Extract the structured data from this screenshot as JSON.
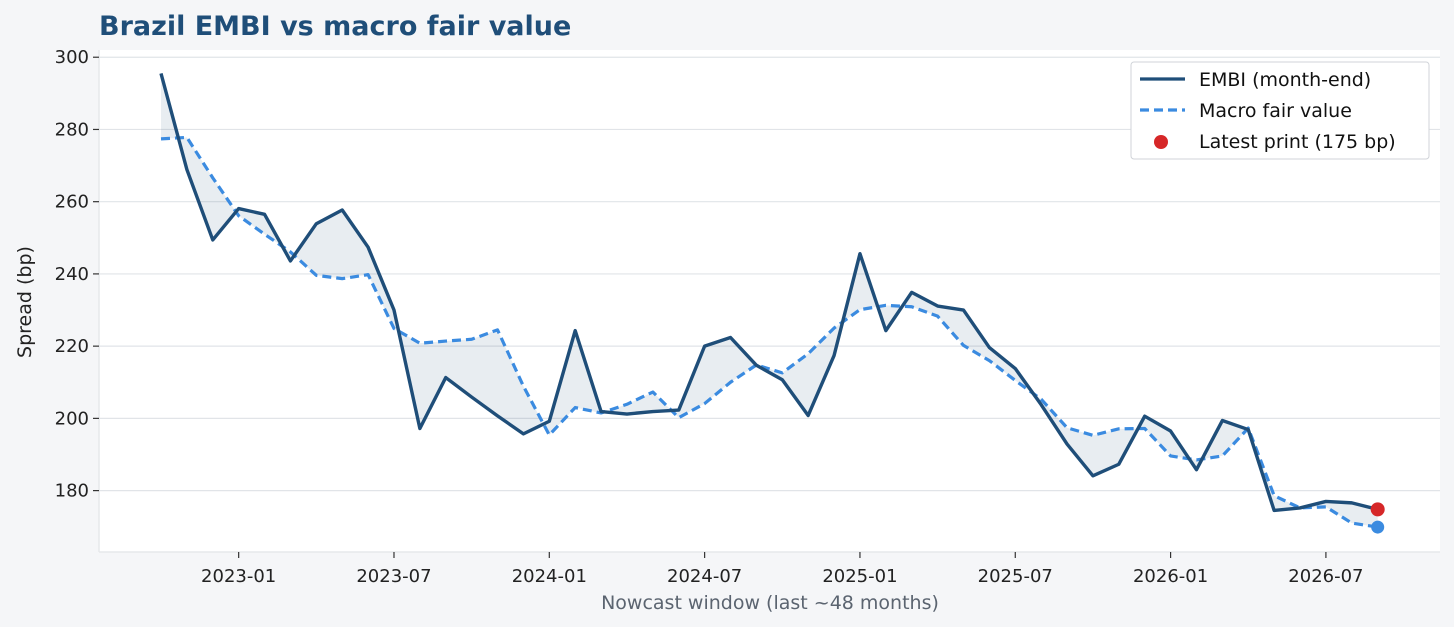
{
  "colors": {
    "embi": "#1f4e79",
    "fair": "#3b8be0",
    "latest": "#d62728",
    "fill": "#1f4e79",
    "title": "#1f4e79",
    "grid": "#e1e4e8",
    "frame": "#e6e8eb"
  },
  "chart_data": {
    "type": "line",
    "title": "Brazil EMBI vs macro fair value",
    "xlabel": "Nowcast window (last ~48 months)",
    "ylabel": "Spread (bp)",
    "ylim": [
      163,
      302
    ],
    "yticks": [
      180,
      200,
      220,
      240,
      260,
      280,
      300
    ],
    "xticks": [
      "2023-01",
      "2023-07",
      "2024-01",
      "2024-07",
      "2025-01",
      "2025-07",
      "2026-01",
      "2026-07"
    ],
    "x": [
      "2022-10",
      "2022-11",
      "2022-12",
      "2023-01",
      "2023-02",
      "2023-03",
      "2023-04",
      "2023-05",
      "2023-06",
      "2023-07",
      "2023-08",
      "2023-09",
      "2023-10",
      "2023-11",
      "2023-12",
      "2024-01",
      "2024-02",
      "2024-03",
      "2024-04",
      "2024-05",
      "2024-06",
      "2024-07",
      "2024-08",
      "2024-09",
      "2024-10",
      "2024-11",
      "2024-12",
      "2025-01",
      "2025-02",
      "2025-03",
      "2025-04",
      "2025-05",
      "2025-06",
      "2025-07",
      "2025-08",
      "2025-09",
      "2025-10",
      "2025-11",
      "2025-12",
      "2026-01",
      "2026-02",
      "2026-03",
      "2026-04",
      "2026-05",
      "2026-06",
      "2026-07",
      "2026-08",
      "2026-09"
    ],
    "series": [
      {
        "name": "EMBI (month-end)",
        "values": [
          295.5,
          268.9,
          249.4,
          258.1,
          256.5,
          243.6,
          253.9,
          257.7,
          247.4,
          230.0,
          197.2,
          211.3,
          205.9,
          200.7,
          195.7,
          199.2,
          224.3,
          201.9,
          201.2,
          201.9,
          202.3,
          220.0,
          222.4,
          214.7,
          210.7,
          200.8,
          217.4,
          245.6,
          224.3,
          234.9,
          231.1,
          230.0,
          219.6,
          213.8,
          203.8,
          192.9,
          184.1,
          187.3,
          200.6,
          196.5,
          185.8,
          199.4,
          196.9,
          174.5,
          175.2,
          177.0,
          176.6,
          174.8
        ]
      },
      {
        "name": "Macro fair value",
        "values": [
          277.4,
          277.8,
          266.6,
          256.1,
          251.0,
          246.1,
          239.6,
          238.7,
          239.8,
          224.9,
          220.8,
          221.4,
          221.9,
          224.5,
          208.9,
          195.4,
          203.0,
          201.5,
          203.9,
          207.3,
          200.2,
          204.1,
          210.0,
          214.8,
          212.6,
          217.9,
          225.0,
          230.1,
          231.3,
          230.9,
          228.3,
          220.2,
          216.0,
          210.5,
          205.3,
          197.4,
          195.3,
          197.1,
          197.2,
          189.6,
          188.5,
          189.6,
          197.3,
          178.6,
          175.2,
          175.5,
          171.0,
          169.9
        ]
      }
    ],
    "latest": {
      "label": "Latest print (175 bp)",
      "x": "2026-09",
      "value": 174.8
    },
    "latest_fair": {
      "x": "2026-09",
      "value": 169.9
    },
    "legend_position": "top-right",
    "grid": "horizontal"
  }
}
